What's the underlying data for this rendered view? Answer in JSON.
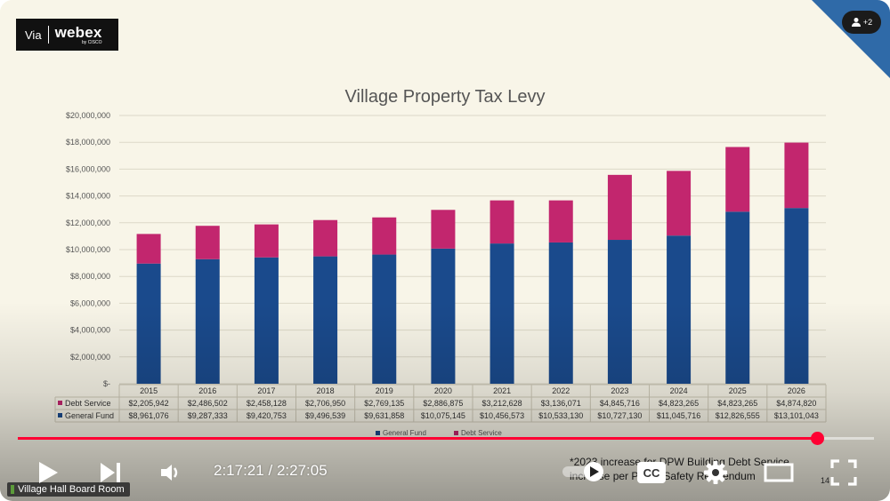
{
  "webex_logo": {
    "via": "Via",
    "brand": "webex",
    "sub": "by CISCO"
  },
  "participants": {
    "count_label": "+2",
    "icon": "person-icon"
  },
  "chart_data": {
    "type": "bar",
    "stacked": true,
    "title": "Village Property Tax Levy",
    "categories": [
      "2015",
      "2016",
      "2017",
      "2018",
      "2019",
      "2020",
      "2021",
      "2022",
      "2023",
      "2024",
      "2025",
      "2026"
    ],
    "series": [
      {
        "name": "General Fund",
        "color": "#1a4a8c",
        "values": [
          8961076,
          9287333,
          9420753,
          9496539,
          9631858,
          10075145,
          10456573,
          10533130,
          10727130,
          11045716,
          12826555,
          13101043
        ],
        "labels": [
          "$8,961,076",
          "$9,287,333",
          "$9,420,753",
          "$9,496,539",
          "$9,631,858",
          "$10,075,145",
          "$10,456,573",
          "$10,533,130",
          "$10,727,130",
          "$11,045,716",
          "$12,826,555",
          "$13,101,043"
        ]
      },
      {
        "name": "Debt Service",
        "color": "#c2266e",
        "values": [
          2205942,
          2486502,
          2458128,
          2706950,
          2769135,
          2886875,
          3212628,
          3136071,
          4845716,
          4823265,
          4823265,
          4874820
        ],
        "labels": [
          "$2,205,942",
          "$2,486,502",
          "$2,458,128",
          "$2,706,950",
          "$2,769,135",
          "$2,886,875",
          "$3,212,628",
          "$3,136,071",
          "$4,845,716",
          "$4,823,265",
          "$4,823,265",
          "$4,874,820"
        ]
      }
    ],
    "yticks": [
      "$-",
      "$2,000,000",
      "$4,000,000",
      "$6,000,000",
      "$8,000,000",
      "$10,000,000",
      "$12,000,000",
      "$14,000,000",
      "$16,000,000",
      "$18,000,000",
      "$20,000,000"
    ],
    "ylim": [
      0,
      20000000
    ],
    "grid": true,
    "legend_placement": "bottom",
    "data_table": true
  },
  "footnote": {
    "line1": "*2023 increase for DPW Building Debt Service",
    "line2": "increase per Public Safety Referendum"
  },
  "page_number": "14",
  "room_label": "Village Hall Board Room",
  "player": {
    "current_time": "2:17:21",
    "duration": "2:27:05",
    "time_separator": "/",
    "progress": 0.9342,
    "accent_color": "#ff0033",
    "controls": [
      "play-icon",
      "next-icon",
      "volume-icon",
      "autoplay-toggle",
      "subtitles-icon",
      "settings-icon",
      "theater-icon",
      "fullscreen-icon"
    ],
    "cc_label": "CC"
  }
}
